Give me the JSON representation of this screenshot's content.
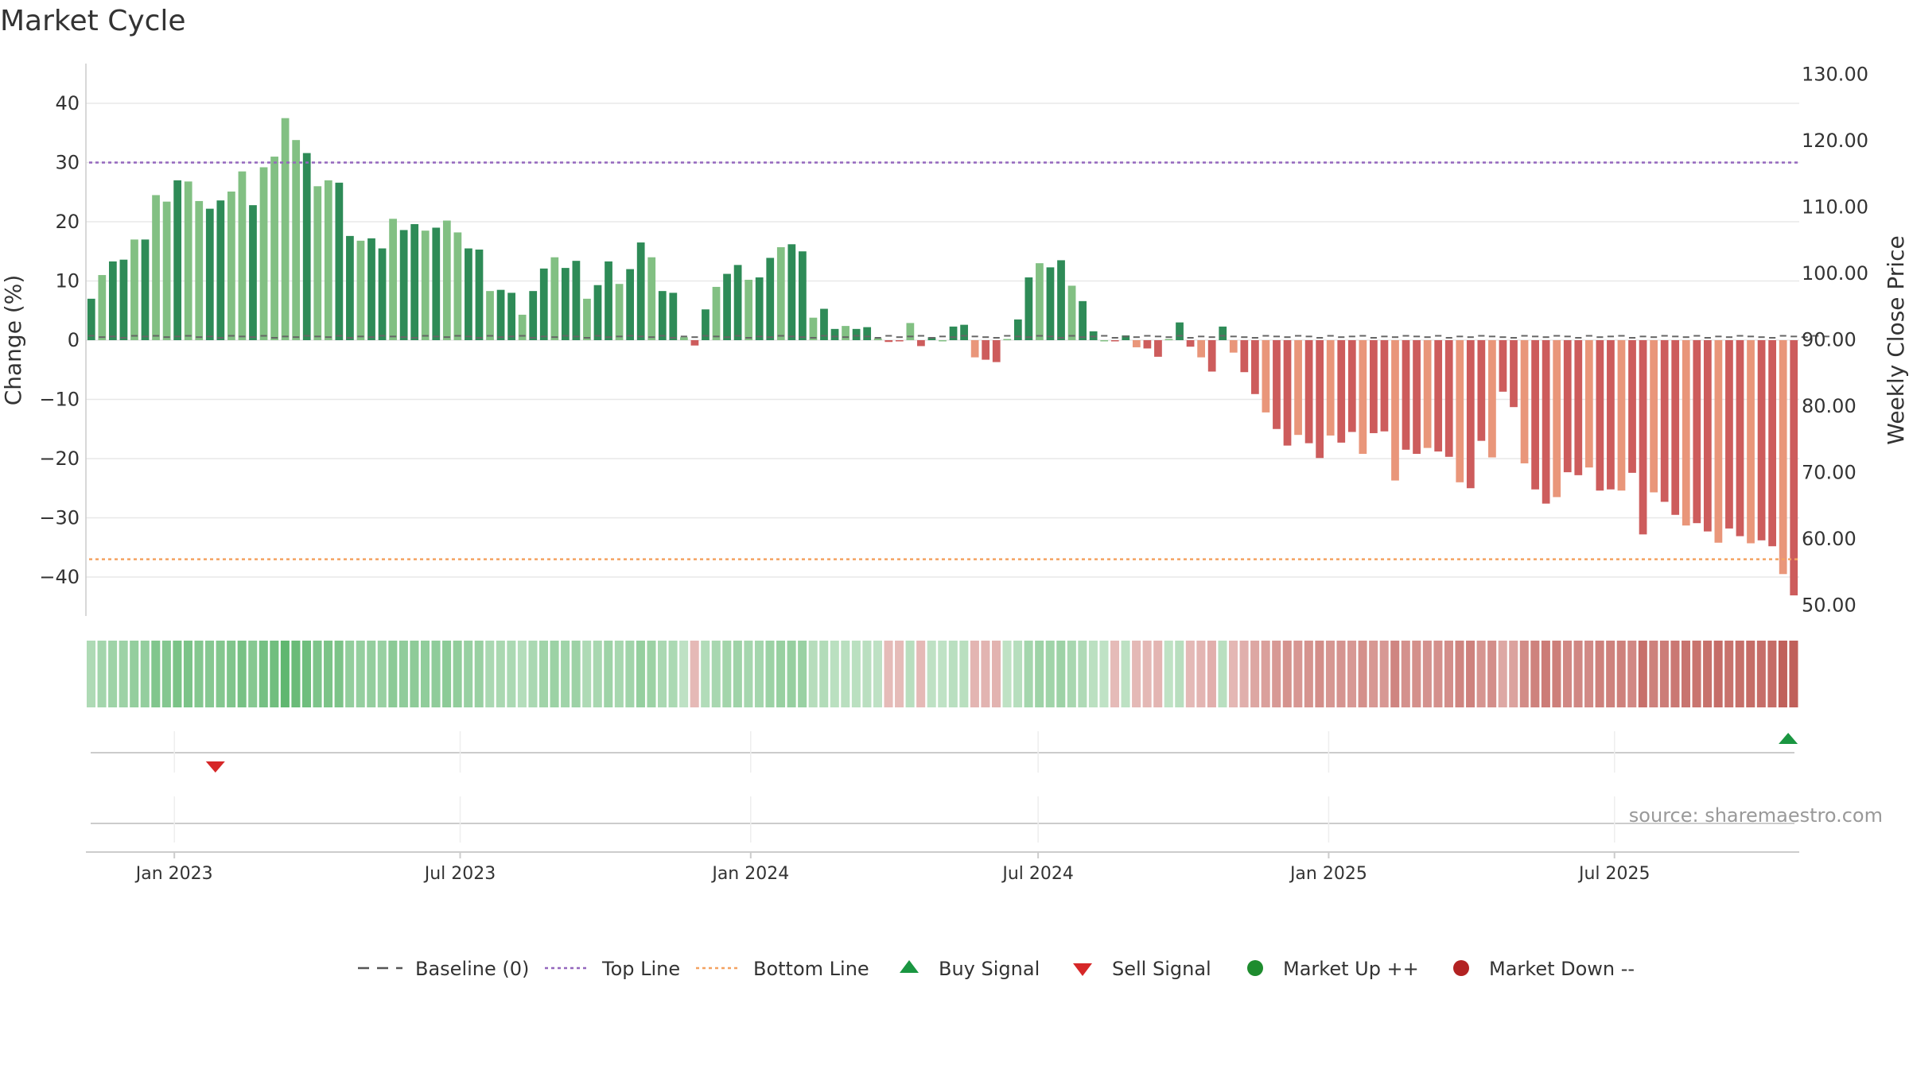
{
  "title": "Market Cycle",
  "source": "source: sharemaestro.com",
  "chart_data": {
    "type": "bar",
    "ylabel_left": "Change (%)",
    "ylabel_right": "Weekly Close Price",
    "y_left": {
      "ylim": [
        -47,
        47
      ],
      "ticks": [
        40,
        30,
        20,
        10,
        0,
        -10,
        -20,
        -30,
        -40
      ],
      "tick_labels": [
        "40",
        "30",
        "20",
        "10",
        "0",
        "−10",
        "−20",
        "−30",
        "−40"
      ]
    },
    "y_right": {
      "ylim": [
        48.36,
        131.64
      ],
      "ticks": [
        130,
        120,
        110,
        100,
        90,
        80,
        70,
        60,
        50
      ],
      "tick_labels": [
        "130.00",
        "120.00",
        "110.00",
        "100.00",
        "90.00",
        "80.00",
        "70.00",
        "60.00",
        "50.00"
      ]
    },
    "x_axis": {
      "start_date": "2022-11-06",
      "end_date": "2025-10-26",
      "ticks": [
        {
          "date": "2023-01-01",
          "label": "Jan 2023"
        },
        {
          "date": "2023-07-01",
          "label": "Jul 2023"
        },
        {
          "date": "2024-01-01",
          "label": "Jan 2024"
        },
        {
          "date": "2024-07-01",
          "label": "Jul 2024"
        },
        {
          "date": "2025-01-01",
          "label": "Jan 2025"
        },
        {
          "date": "2025-07-01",
          "label": "Jul 2025"
        }
      ]
    },
    "grid": true,
    "reference_lines": [
      {
        "name": "Baseline (0)",
        "value": 0,
        "color": "#555555",
        "style": "dashed"
      },
      {
        "name": "Top Line",
        "value": 30,
        "color": "#9467bd",
        "style": "dotted"
      },
      {
        "name": "Bottom Line",
        "value": -37,
        "color": "#f4a261",
        "style": "dotted"
      }
    ],
    "weekly_change": [
      7,
      11,
      13.3,
      13.6,
      17,
      17,
      24.5,
      23.4,
      27,
      26.8,
      23.5,
      22.2,
      23.6,
      25.1,
      28.5,
      22.8,
      29.2,
      31,
      37.5,
      33.8,
      31.6,
      26,
      27,
      26.6,
      17.6,
      16.8,
      17.2,
      15.5,
      20.5,
      18.6,
      19.6,
      18.5,
      19,
      20.2,
      18.2,
      15.5,
      15.3,
      8.3,
      8.5,
      8,
      4.3,
      8.3,
      12.1,
      14,
      12.2,
      13.4,
      7,
      9.3,
      13.3,
      9.5,
      12,
      16.5,
      14,
      8.3,
      8,
      0.5,
      -0.9,
      5.2,
      9,
      11.2,
      12.7,
      10.2,
      10.6,
      13.9,
      15.7,
      16.2,
      15,
      3.8,
      5.3,
      1.9,
      2.4,
      1.9,
      2.2,
      0.3,
      -0.3,
      -0.2,
      2.9,
      -1,
      0.5,
      0,
      2.3,
      2.6,
      -2.9,
      -3.3,
      -3.7,
      0.2,
      3.5,
      10.6,
      13,
      12.3,
      13.5,
      9.2,
      6.6,
      1.5,
      0,
      -0.2,
      0.8,
      -1.2,
      -1.4,
      -2.8,
      0.2,
      3,
      -1.1,
      -2.9,
      -5.3,
      2.3,
      -2.1,
      -5.4,
      -9.1,
      -12.2,
      -15,
      -17.8,
      -16,
      -17.4,
      -19.9,
      -16.1,
      -17.3,
      -15.5,
      -19.2,
      -15.7,
      -15.4,
      -23.7,
      -18.5,
      -19.2,
      -18.2,
      -18.8,
      -19.7,
      -24,
      -25,
      -17,
      -19.8,
      -8.7,
      -11.3,
      -20.8,
      -25.2,
      -27.6,
      -26.5,
      -22.3,
      -22.8,
      -21.5,
      -25.4,
      -25.2,
      -25.4,
      -22.4,
      -32.8,
      -25.7,
      -27.3,
      -29.5,
      -31.3,
      -30.9,
      -32.3,
      -34.2,
      -31.8,
      -33.1,
      -34.3,
      -33.8,
      -34.8,
      -39.5,
      -43.1
    ],
    "weekly_close_price": [
      90.6,
      90.4,
      90.5,
      90.3,
      90.6,
      90.5,
      90.6,
      90.4,
      90.5,
      90.6,
      90.4,
      90.5,
      90.3,
      90.6,
      90.5,
      90.4,
      90.6,
      90.3,
      90.5,
      90.4,
      90.6,
      90.5,
      90.4,
      90.6,
      90.3,
      90.5,
      90.4,
      90.6,
      90.5,
      90.4,
      90.3,
      90.6,
      90.5,
      90.4,
      90.6,
      90.5,
      90.3,
      90.6,
      90.4,
      90.5,
      90.6,
      90.3,
      90.5,
      90.4,
      90.6,
      90.5,
      90.3,
      90.6,
      90.4,
      90.5,
      90.6,
      90.5,
      90.4,
      90.6,
      90.3,
      90.5,
      90.4,
      90.6,
      90.5,
      90.4,
      90.6,
      90.3,
      90.5,
      90.4,
      90.6,
      90.5,
      90.4,
      90.3,
      90.6,
      90.5,
      90.4,
      90.6,
      90.5,
      90.3,
      90.6,
      90.4,
      90.5,
      90.6,
      90.3,
      90.5,
      90.4,
      90.6,
      90.5,
      90.4,
      90.3,
      90.6,
      90.5,
      90.4,
      90.6,
      90.5,
      90.3,
      90.6,
      90.4,
      90.5,
      90.6,
      90.3,
      90.5,
      90.4,
      90.6,
      90.5,
      90.4,
      90.6,
      90.3,
      90.5,
      90.4,
      90.6,
      90.5,
      90.4,
      90.3,
      90.6,
      90.5,
      90.4,
      90.6,
      90.5,
      90.3,
      90.6,
      90.4,
      90.5,
      90.6,
      90.3,
      90.5,
      90.4,
      90.6,
      90.5,
      90.4,
      90.6,
      90.3,
      90.5,
      90.4,
      90.6,
      90.5,
      90.4,
      90.3,
      90.6,
      90.5,
      90.4,
      90.6,
      90.5,
      90.3,
      90.6,
      90.4,
      90.5,
      90.6,
      90.3,
      90.5,
      90.4,
      90.6,
      90.5,
      90.4,
      90.6,
      90.3,
      90.5,
      90.4,
      90.6,
      90.5,
      90.4,
      90.3,
      90.6,
      90.5,
      90.4,
      90.6,
      90.5
    ],
    "signals": [
      {
        "type": "Sell Signal",
        "date": "2023-01-27"
      },
      {
        "type": "Buy Signal",
        "date": "2025-10-19"
      }
    ],
    "colors": {
      "up_dark": "#2e8b57",
      "up_light": "#82c083",
      "down_dark": "#cd5c5c",
      "down_light": "#e9967a",
      "heat_up_strong": "#5ab46a",
      "heat_up_weak": "#e0f0e2",
      "heat_down_weak": "#f0d6d4",
      "heat_down_strong": "#c0605a",
      "buy": "#1a9641",
      "sell": "#d62728",
      "market_up": "#1e8c2e",
      "market_down": "#b22222",
      "grid": "#e8e8e8",
      "axis": "#cccccc"
    },
    "legend": [
      {
        "label": "Baseline (0)",
        "marker": "dashed-line",
        "color": "#555555"
      },
      {
        "label": "Top Line",
        "marker": "dotted-line",
        "color": "#9467bd"
      },
      {
        "label": "Bottom Line",
        "marker": "dotted-line",
        "color": "#f4a261"
      },
      {
        "label": "Buy Signal",
        "marker": "triangle-up",
        "color": "#1a9641"
      },
      {
        "label": "Sell Signal",
        "marker": "triangle-down",
        "color": "#d62728"
      },
      {
        "label": "Market Up ++",
        "marker": "circle",
        "color": "#1e8c2e"
      },
      {
        "label": "Market Down --",
        "marker": "circle",
        "color": "#b22222"
      }
    ]
  }
}
